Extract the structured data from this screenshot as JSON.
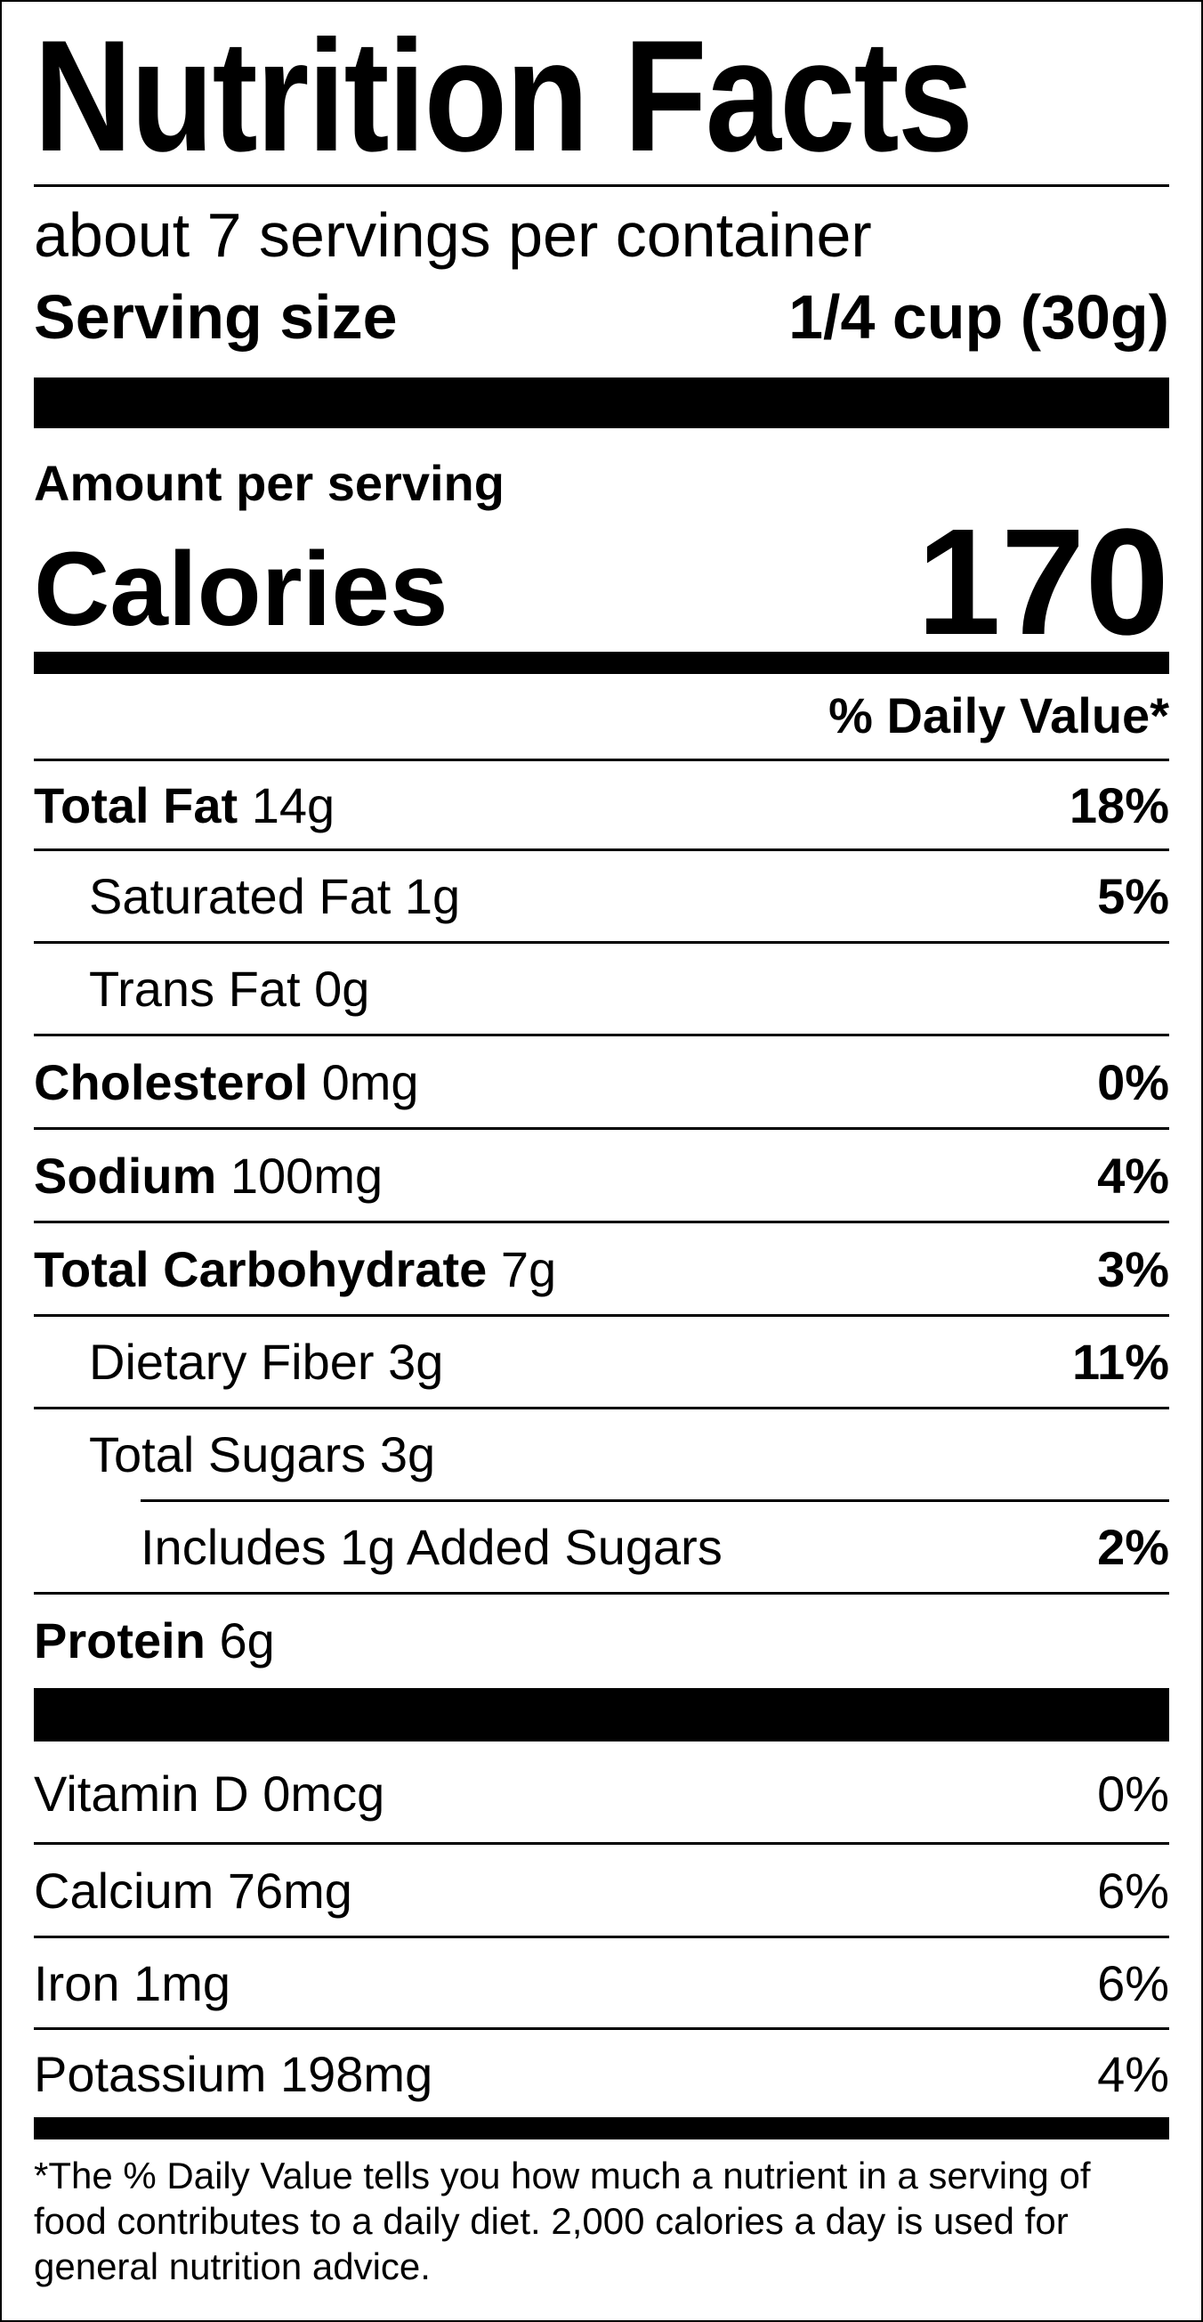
{
  "title": "Nutrition Facts",
  "servings_per_container": "about 7 servings per container",
  "serving_size": {
    "label": "Serving size",
    "value": "1/4 cup (30g)"
  },
  "amount_per_serving": "Amount per serving",
  "calories": {
    "label": "Calories",
    "value": "170"
  },
  "daily_value_header": "% Daily Value*",
  "nutrients": [
    {
      "name": "Total Fat",
      "amount": "14g",
      "dv": "18%"
    },
    {
      "name": "Saturated Fat",
      "amount": "1g",
      "dv": "5%"
    },
    {
      "name": "Trans Fat",
      "amount": "0g",
      "dv": ""
    },
    {
      "name": "Cholesterol",
      "amount": "0mg",
      "dv": "0%"
    },
    {
      "name": "Sodium",
      "amount": "100mg",
      "dv": "4%"
    },
    {
      "name": "Total Carbohydrate",
      "amount": "7g",
      "dv": "3%"
    },
    {
      "name": "Dietary Fiber",
      "amount": "3g",
      "dv": "11%"
    },
    {
      "name": "Total Sugars",
      "amount": "3g",
      "dv": ""
    },
    {
      "name": "Includes 1g Added Sugars",
      "amount": "",
      "dv": "2%"
    },
    {
      "name": "Protein",
      "amount": "6g",
      "dv": ""
    }
  ],
  "vitamins": [
    {
      "name": "Vitamin D 0mcg",
      "dv": "0%"
    },
    {
      "name": "Calcium 76mg",
      "dv": "6%"
    },
    {
      "name": "Iron 1mg",
      "dv": "6%"
    },
    {
      "name": "Potassium 198mg",
      "dv": "4%"
    }
  ],
  "footnote": "*The % Daily Value tells you how much a nutrient in a serving of food contributes to a daily diet. 2,000 calories a day is used for general nutrition advice."
}
